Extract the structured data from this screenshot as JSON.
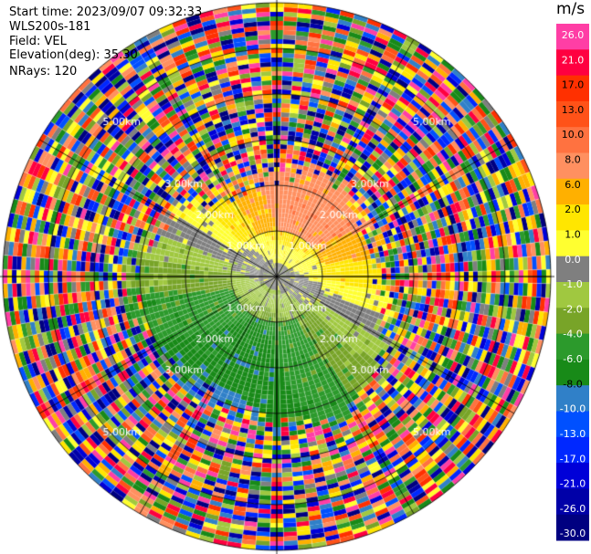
{
  "header": {
    "start_time": "Start time: 2023/09/07 09:32:33",
    "instrument": "WLS200s-181",
    "field": "Field: VEL",
    "elevation": "Elevation(deg): 35.30",
    "nrays": "NRays: 120"
  },
  "chart_data": {
    "type": "heatmap",
    "projection": "polar-ppi",
    "field": "VEL",
    "unit": "m/s",
    "nrays": 120,
    "max_range_km": 6.0,
    "range_rings_km": [
      1.0,
      2.0,
      3.0,
      5.0
    ],
    "range_labels": [
      "1.00km",
      "2.00km",
      "3.00km",
      "5.00km"
    ],
    "colorbar": {
      "unit": "m/s",
      "ticks": [
        "26.0",
        "21.0",
        "17.0",
        "13.0",
        "10.0",
        "8.0",
        "6.0",
        "2.0",
        "1.0",
        "0.0",
        "-1.0",
        "-2.0",
        "-4.0",
        "-6.0",
        "-8.0",
        "-10.0",
        "-13.0",
        "-17.0",
        "-21.0",
        "-26.0",
        "-30.0"
      ],
      "colors": [
        "#ff3ea5",
        "#ff0040",
        "#ff3000",
        "#ff5218",
        "#ff7240",
        "#ff9060",
        "#ffb000",
        "#ffe600",
        "#ffff30",
        "#7f7f7f",
        "#a0c840",
        "#78a428",
        "#2c9a2c",
        "#188a18",
        "#3080c8",
        "#0050ff",
        "#0028ff",
        "#0000d8",
        "#0000a8",
        "#000080"
      ]
    },
    "wind": {
      "approach_quadrant": "north-east",
      "receding_quadrant": "south-south-west"
    }
  }
}
